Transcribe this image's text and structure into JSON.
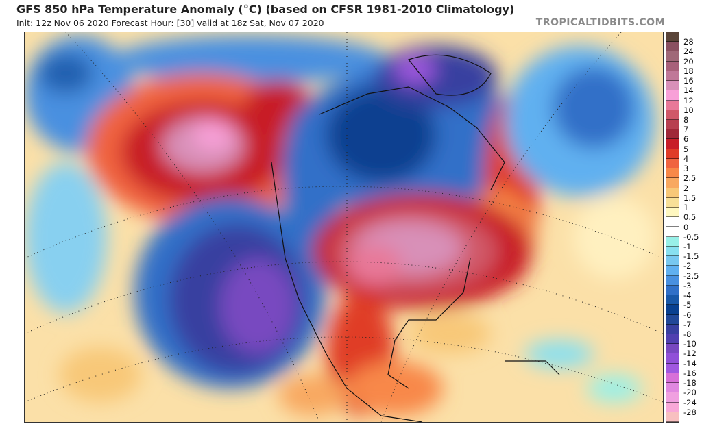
{
  "header": {
    "title": "GFS 850 hPa Temperature Anomaly (°C) (based on CFSR 1981-2010 Climatology)",
    "subtitle": "Init: 12z Nov 06 2020   Forecast Hour: [30]   valid at 18z Sat, Nov 07 2020",
    "logo": "TROPICALTIDBITS.COM"
  },
  "map": {
    "region": "North America",
    "field": "850 hPa temperature anomaly"
  },
  "colorbar": {
    "unit": "°C",
    "labels": [
      "28",
      "24",
      "20",
      "18",
      "16",
      "14",
      "12",
      "10",
      "8",
      "7",
      "6",
      "5",
      "4",
      "3",
      "2.5",
      "2",
      "1.5",
      "1",
      "0.5",
      "0",
      "-0.5",
      "-1",
      "-1.5",
      "-2",
      "-2.5",
      "-3",
      "-4",
      "-5",
      "-6",
      "-7",
      "-8",
      "-10",
      "-12",
      "-14",
      "-16",
      "-18",
      "-20",
      "-24",
      "-28"
    ],
    "colors": [
      "#5a4438",
      "#8a5060",
      "#a06878",
      "#a8607a",
      "#c07898",
      "#d890b8",
      "#f8a0d8",
      "#e87898",
      "#d05868",
      "#b84050",
      "#a02838",
      "#c81e28",
      "#e03c28",
      "#f06440",
      "#f88848",
      "#f8a860",
      "#f8c878",
      "#f8e098",
      "#fff8c0",
      "#ffffff",
      "#ffffff",
      "#98f0e8",
      "#88e0f0",
      "#78c8f0",
      "#60b0f0",
      "#4890e0",
      "#3070c8",
      "#1858a8",
      "#084090",
      "#204898",
      "#3840a0",
      "#5040b0",
      "#7848c0",
      "#9050d8",
      "#a058e0",
      "#d870d8",
      "#e088e0",
      "#f0a0e0",
      "#f8a8d8",
      "#f8c0c0"
    ]
  }
}
